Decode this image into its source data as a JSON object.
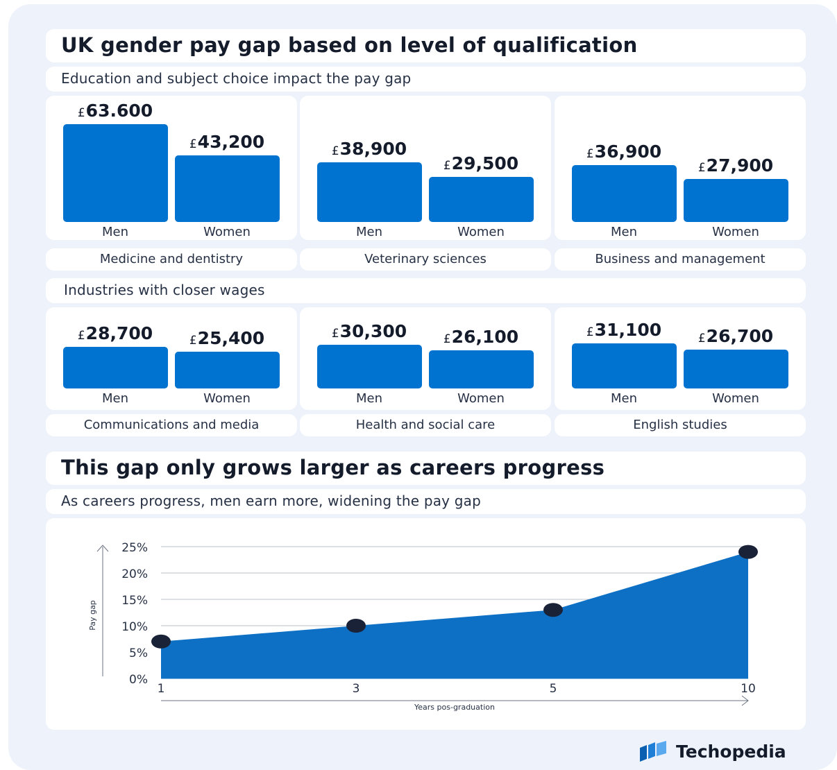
{
  "header": {
    "title": "UK gender pay gap based on level of qualification",
    "subtitle": "Education and subject choice impact the pay gap"
  },
  "section2": {
    "subtitle": "Industries with closer wages"
  },
  "section3": {
    "title": "This gap only grows larger as careers progress",
    "subtitle": "As careers progress, men earn more, widening the pay gap"
  },
  "brand": {
    "name": "Techopedia"
  },
  "colors": {
    "bar": "#0072cf",
    "area": "#0d70c4",
    "dot": "#1a2238",
    "background": "#eef3fb"
  },
  "chart_data": [
    {
      "type": "bar",
      "title": "Medicine and dentistry",
      "categories": [
        "Men",
        "Women"
      ],
      "values": [
        63600,
        43200
      ],
      "labels": [
        "63.600",
        "43,200"
      ],
      "currency": "£"
    },
    {
      "type": "bar",
      "title": "Veterinary sciences",
      "categories": [
        "Men",
        "Women"
      ],
      "values": [
        38900,
        29500
      ],
      "labels": [
        "38,900",
        "29,500"
      ],
      "currency": "£"
    },
    {
      "type": "bar",
      "title": "Business and management",
      "categories": [
        "Men",
        "Women"
      ],
      "values": [
        36900,
        27900
      ],
      "labels": [
        "36,900",
        "27,900"
      ],
      "currency": "£"
    },
    {
      "type": "bar",
      "title": "Communications and media",
      "categories": [
        "Men",
        "Women"
      ],
      "values": [
        28700,
        25400
      ],
      "labels": [
        "28,700",
        "25,400"
      ],
      "currency": "£"
    },
    {
      "type": "bar",
      "title": "Health and social care",
      "categories": [
        "Men",
        "Women"
      ],
      "values": [
        30300,
        26100
      ],
      "labels": [
        "30,300",
        "26,100"
      ],
      "currency": "£"
    },
    {
      "type": "bar",
      "title": "English studies",
      "categories": [
        "Men",
        "Women"
      ],
      "values": [
        31100,
        26700
      ],
      "labels": [
        "31,100",
        "26,700"
      ],
      "currency": "£"
    },
    {
      "type": "area",
      "x": [
        1,
        3,
        5,
        10
      ],
      "x_labels": [
        "1",
        "3",
        "5",
        "10"
      ],
      "y": [
        7,
        10,
        13,
        24
      ],
      "xlabel": "Years pos-graduation",
      "ylabel": "Pay gap",
      "ylim": [
        0,
        25
      ],
      "yticks": [
        "0%",
        "5%",
        "10%",
        "15%",
        "20%",
        "25%"
      ],
      "grid": true
    }
  ]
}
